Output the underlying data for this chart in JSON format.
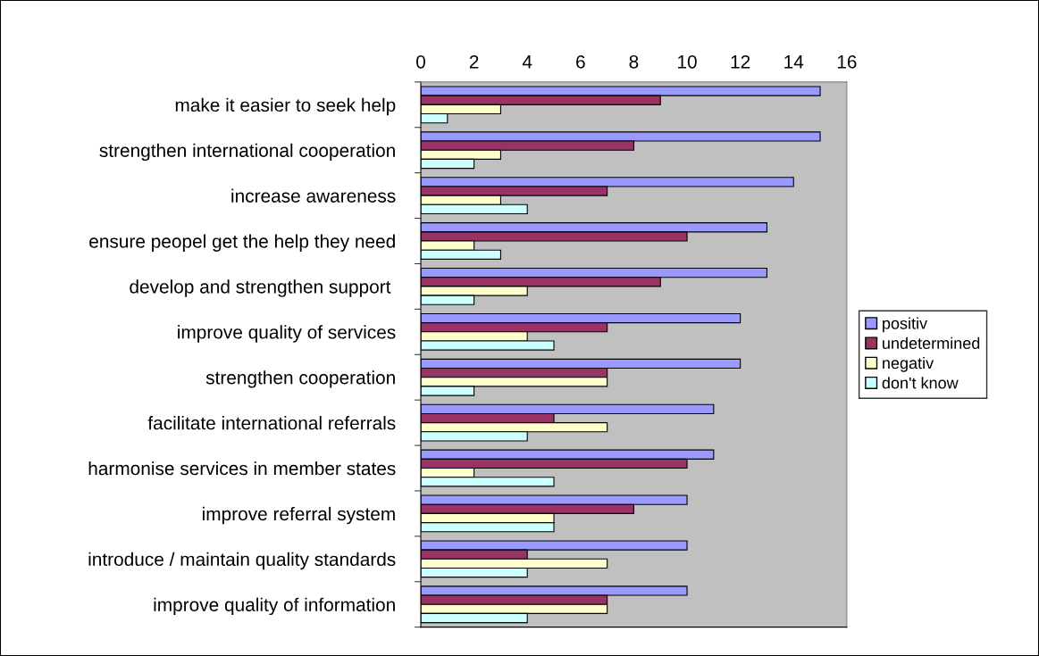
{
  "chart_data": {
    "type": "bar",
    "orientation": "horizontal",
    "categories": [
      "make it easier to seek help",
      "strengthen international cooperation",
      "increase awareness",
      "ensure peopel get the help they need",
      "develop and strengthen support ",
      "improve quality of services",
      "strengthen cooperation",
      "facilitate international referrals",
      "harmonise services in member states",
      "improve referral system",
      "introduce / maintain quality standards",
      "improve quality of information"
    ],
    "series": [
      {
        "name": "positiv",
        "color": "#9999ff",
        "values": [
          15,
          15,
          14,
          13,
          13,
          12,
          12,
          11,
          11,
          10,
          10,
          10
        ]
      },
      {
        "name": "undetermined",
        "color": "#993366",
        "values": [
          9,
          8,
          7,
          10,
          9,
          7,
          7,
          5,
          10,
          8,
          4,
          7
        ]
      },
      {
        "name": "negativ",
        "color": "#ffffcc",
        "values": [
          3,
          3,
          3,
          2,
          4,
          4,
          7,
          7,
          2,
          5,
          7,
          7
        ]
      },
      {
        "name": "don't know",
        "color": "#ccffff",
        "values": [
          1,
          2,
          4,
          3,
          2,
          5,
          2,
          4,
          5,
          5,
          4,
          4
        ]
      }
    ],
    "xlim": [
      0,
      16
    ],
    "xticks": [
      0,
      2,
      4,
      6,
      8,
      10,
      12,
      14,
      16
    ],
    "grid": false,
    "legend": "right"
  }
}
